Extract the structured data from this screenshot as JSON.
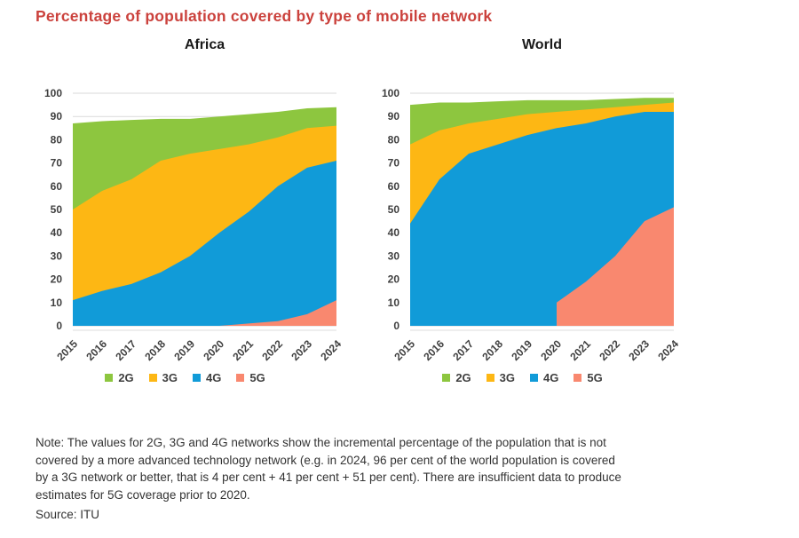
{
  "title": "Percentage of population covered by type of mobile network",
  "colors": {
    "title": "#cb423d",
    "grid": "#d9d9d9",
    "axis_line": "#dcdcdc",
    "axis_text": "#3f3f3f",
    "2G": "#8dc63f",
    "3G": "#fdb714",
    "4G": "#119bd8",
    "5G": "#f9886f"
  },
  "legend": {
    "items": [
      "2G",
      "3G",
      "4G",
      "5G"
    ]
  },
  "chart_data": [
    {
      "type": "area",
      "stacked": true,
      "title": "Africa",
      "x": [
        2015,
        2016,
        2017,
        2018,
        2019,
        2020,
        2021,
        2022,
        2023,
        2024
      ],
      "ylabel": "",
      "xlabel": "",
      "ylim": [
        0,
        100
      ],
      "ytick_step": 10,
      "grid": true,
      "legend_position": "bottom",
      "stack_order_bottom_to_top": [
        "5G",
        "4G",
        "3G",
        "2G"
      ],
      "series": [
        {
          "name": "2G",
          "values": [
            37,
            30,
            25.5,
            18,
            15,
            14,
            13,
            11,
            8.5,
            8
          ]
        },
        {
          "name": "3G",
          "values": [
            39,
            43,
            45,
            48,
            44,
            36,
            29,
            21,
            17,
            15
          ]
        },
        {
          "name": "4G",
          "values": [
            11,
            15,
            18,
            23,
            30,
            40,
            48,
            58,
            63,
            60
          ]
        },
        {
          "name": "5G",
          "values": [
            null,
            null,
            null,
            null,
            null,
            0,
            1,
            2,
            5,
            11
          ]
        }
      ]
    },
    {
      "type": "area",
      "stacked": true,
      "title": "World",
      "x": [
        2015,
        2016,
        2017,
        2018,
        2019,
        2020,
        2021,
        2022,
        2023,
        2024
      ],
      "ylabel": "",
      "xlabel": "",
      "ylim": [
        0,
        100
      ],
      "ytick_step": 10,
      "grid": true,
      "legend_position": "bottom",
      "stack_order_bottom_to_top": [
        "5G",
        "4G",
        "3G",
        "2G"
      ],
      "series": [
        {
          "name": "2G",
          "values": [
            17,
            12,
            9,
            7.5,
            6,
            5,
            4,
            3.5,
            3,
            2
          ]
        },
        {
          "name": "3G",
          "values": [
            34,
            21,
            13,
            11,
            9,
            7,
            6,
            4,
            3,
            4
          ]
        },
        {
          "name": "4G",
          "values": [
            44,
            63,
            74,
            78,
            82,
            75,
            68,
            60,
            47,
            41
          ]
        },
        {
          "name": "5G",
          "values": [
            null,
            null,
            null,
            null,
            null,
            10,
            19,
            30,
            45,
            51
          ]
        }
      ]
    }
  ],
  "note": {
    "text": "Note: The values for 2G, 3G and 4G networks show the incremental percentage of the population that is not\ncovered by a more advanced technology network (e.g. in 2024, 96 per cent of the world population is covered\nby a 3G network or better, that is 4 per cent + 41 per cent + 51 per cent). There are insufficient data to produce\nestimates for 5G coverage prior to 2020.",
    "source": "Source: ITU"
  }
}
